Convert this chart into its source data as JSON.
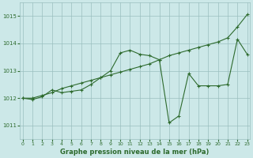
{
  "title": "Graphe pression niveau de la mer (hPa)",
  "x_values": [
    0,
    1,
    2,
    3,
    4,
    5,
    6,
    7,
    8,
    9,
    10,
    11,
    12,
    13,
    14,
    15,
    16,
    17,
    18,
    19,
    20,
    21,
    22,
    23
  ],
  "line1_y": [
    1012.0,
    1012.0,
    1012.1,
    1012.2,
    1012.35,
    1012.45,
    1012.55,
    1012.65,
    1012.75,
    1012.85,
    1012.95,
    1013.05,
    1013.15,
    1013.25,
    1013.4,
    1013.55,
    1013.65,
    1013.75,
    1013.85,
    1013.95,
    1014.05,
    1014.2,
    1014.6,
    1015.05
  ],
  "line2_y": [
    1012.0,
    1011.95,
    1012.05,
    1012.3,
    1012.2,
    1012.25,
    1012.3,
    1012.5,
    1012.75,
    1013.0,
    1013.65,
    1013.75,
    1013.6,
    1013.55,
    1013.4,
    1011.1,
    1011.35,
    1012.9,
    1012.45,
    1012.45,
    1012.45,
    1012.5,
    1014.15,
    1013.6
  ],
  "ylim": [
    1010.5,
    1015.5
  ],
  "yticks": [
    1011,
    1012,
    1013,
    1014,
    1015
  ],
  "xticks": [
    0,
    1,
    2,
    3,
    4,
    5,
    6,
    7,
    8,
    9,
    10,
    11,
    12,
    13,
    14,
    15,
    16,
    17,
    18,
    19,
    20,
    21,
    22,
    23
  ],
  "line_color": "#2d6a2d",
  "bg_color": "#cce8e8",
  "grid_color": "#9abfbf",
  "marker": "+",
  "marker_size": 3,
  "line_width": 0.8
}
